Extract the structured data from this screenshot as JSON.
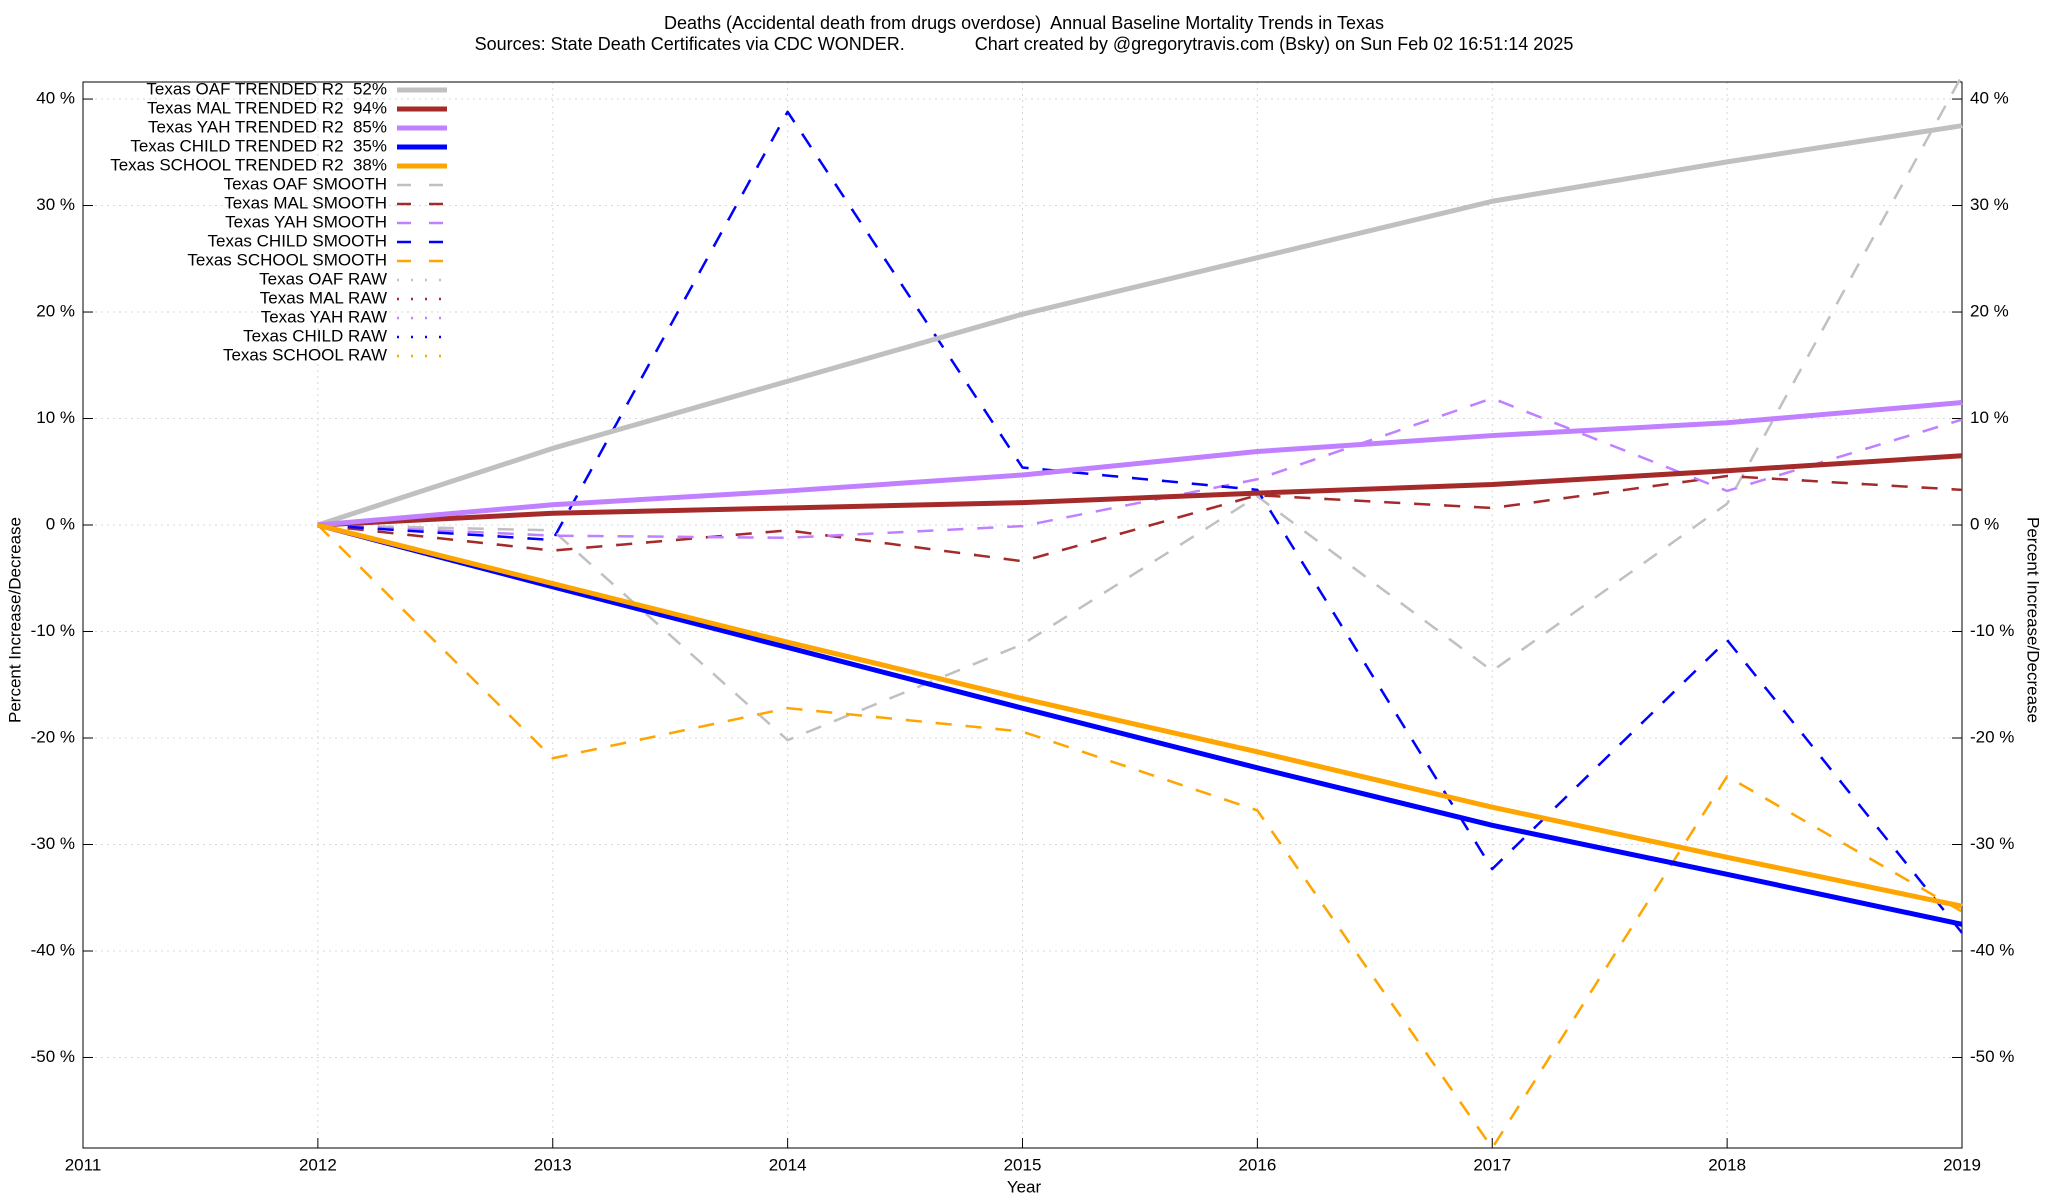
{
  "chart_data": {
    "type": "line",
    "title": "Deaths (Accidental death from drugs overdose)  Annual Baseline Mortality Trends in Texas",
    "subtitle": "Sources: State Death Certificates via CDC WONDER.              Chart created by @gregorytravis.com (Bsky) on Sun Feb 02 16:51:14 2025",
    "xlabel": "Year",
    "ylabel": "Percent Increase/Decrease",
    "y2label": "Percent Increase/Decrease",
    "x": [
      2012,
      2013,
      2014,
      2015,
      2016,
      2017,
      2018,
      2019
    ],
    "xlim": [
      2011,
      2019
    ],
    "xticks": [
      2011,
      2012,
      2013,
      2014,
      2015,
      2016,
      2017,
      2018,
      2019
    ],
    "ylim": [
      -58.5,
      41.6
    ],
    "yticks": [
      {
        "value": -50,
        "label": "-50 %"
      },
      {
        "value": -40,
        "label": "-40 %"
      },
      {
        "value": -30,
        "label": "-30 %"
      },
      {
        "value": -20,
        "label": "-20 %"
      },
      {
        "value": -10,
        "label": "-10 %"
      },
      {
        "value": 0,
        "label": "0 %"
      },
      {
        "value": 10,
        "label": "10 %"
      },
      {
        "value": 20,
        "label": "20 %"
      },
      {
        "value": 30,
        "label": "30 %"
      },
      {
        "value": 40,
        "label": "40 %"
      }
    ],
    "y2lim": [
      -58.5,
      41.6
    ],
    "y2ticks": [
      {
        "value": -50,
        "label": "-50 %"
      },
      {
        "value": -40,
        "label": "-40 %"
      },
      {
        "value": -30,
        "label": "-30 %"
      },
      {
        "value": -20,
        "label": "-20 %"
      },
      {
        "value": -10,
        "label": "-10 %"
      },
      {
        "value": 0,
        "label": "0 %"
      },
      {
        "value": 10,
        "label": "10 %"
      },
      {
        "value": 20,
        "label": "20 %"
      },
      {
        "value": 30,
        "label": "30 %"
      },
      {
        "value": 40,
        "label": "40 %"
      }
    ],
    "grid": true,
    "legend": "top-left",
    "series": [
      {
        "name": "Texas OAF TRENDED R2  52%",
        "color": "#c0c0c0",
        "style": "solid",
        "values": [
          0,
          7.2,
          13.5,
          19.8,
          25.1,
          30.4,
          34.1,
          37.5
        ]
      },
      {
        "name": "Texas MAL TRENDED R2  94%",
        "color": "#a52a2a",
        "style": "solid",
        "values": [
          0,
          1.1,
          1.6,
          2.1,
          3.0,
          3.8,
          5.1,
          6.5
        ]
      },
      {
        "name": "Texas YAH TRENDED R2  85%",
        "color": "#c080ff",
        "style": "solid",
        "values": [
          0,
          1.9,
          3.2,
          4.7,
          6.9,
          8.4,
          9.6,
          11.5
        ]
      },
      {
        "name": "Texas CHILD TRENDED R2  35%",
        "color": "#0000ff",
        "style": "solid",
        "values": [
          0,
          -5.8,
          -11.5,
          -17.2,
          -22.8,
          -28.2,
          -32.8,
          -37.5
        ]
      },
      {
        "name": "Texas SCHOOL TRENDED R2  38%",
        "color": "#ffa500",
        "style": "solid",
        "values": [
          0,
          -5.5,
          -11.0,
          -16.3,
          -21.3,
          -26.5,
          -31.2,
          -35.8
        ]
      },
      {
        "name": "Texas OAF SMOOTH",
        "color": "#c0c0c0",
        "style": "dashed",
        "values": [
          0,
          -0.5,
          -20.2,
          -11.2,
          2.7,
          -13.7,
          2.0,
          42.2
        ]
      },
      {
        "name": "Texas MAL SMOOTH",
        "color": "#a52a2a",
        "style": "dashed",
        "values": [
          0,
          -2.4,
          -0.5,
          -3.4,
          2.8,
          1.6,
          4.6,
          3.3
        ]
      },
      {
        "name": "Texas YAH SMOOTH",
        "color": "#c080ff",
        "style": "dashed",
        "values": [
          0,
          -1.0,
          -1.2,
          -0.1,
          4.3,
          11.9,
          3.2,
          9.9
        ]
      },
      {
        "name": "Texas CHILD SMOOTH",
        "color": "#0000ff",
        "style": "dashed",
        "values": [
          0,
          -1.4,
          38.8,
          5.4,
          3.3,
          -32.3,
          -10.8,
          -38.3
        ]
      },
      {
        "name": "Texas SCHOOL SMOOTH",
        "color": "#ffa500",
        "style": "dashed",
        "values": [
          0,
          -21.9,
          -17.2,
          -19.4,
          -26.8,
          -58.5,
          -23.6,
          -36.3
        ]
      },
      {
        "name": "Texas OAF RAW",
        "color": "#c0c0c0",
        "style": "dotted",
        "values": [
          0,
          -0.5,
          -20.2,
          -11.2,
          2.7,
          -13.7,
          2.0,
          42.2
        ]
      },
      {
        "name": "Texas MAL RAW",
        "color": "#a52a2a",
        "style": "dotted",
        "values": [
          0,
          -2.4,
          -0.5,
          -3.4,
          2.8,
          1.6,
          4.6,
          3.3
        ]
      },
      {
        "name": "Texas YAH RAW",
        "color": "#c080ff",
        "style": "dotted",
        "values": [
          0,
          -1.0,
          -1.2,
          -0.1,
          4.3,
          11.9,
          3.2,
          9.9
        ]
      },
      {
        "name": "Texas CHILD RAW",
        "color": "#0000ff",
        "style": "dotted",
        "values": [
          0,
          -1.4,
          38.8,
          5.4,
          3.3,
          -32.3,
          -10.8,
          -38.3
        ]
      },
      {
        "name": "Texas SCHOOL RAW",
        "color": "#ffa500",
        "style": "dotted",
        "values": [
          0,
          -21.9,
          -17.2,
          -19.4,
          -26.8,
          -58.5,
          -23.6,
          -36.3
        ]
      }
    ]
  }
}
